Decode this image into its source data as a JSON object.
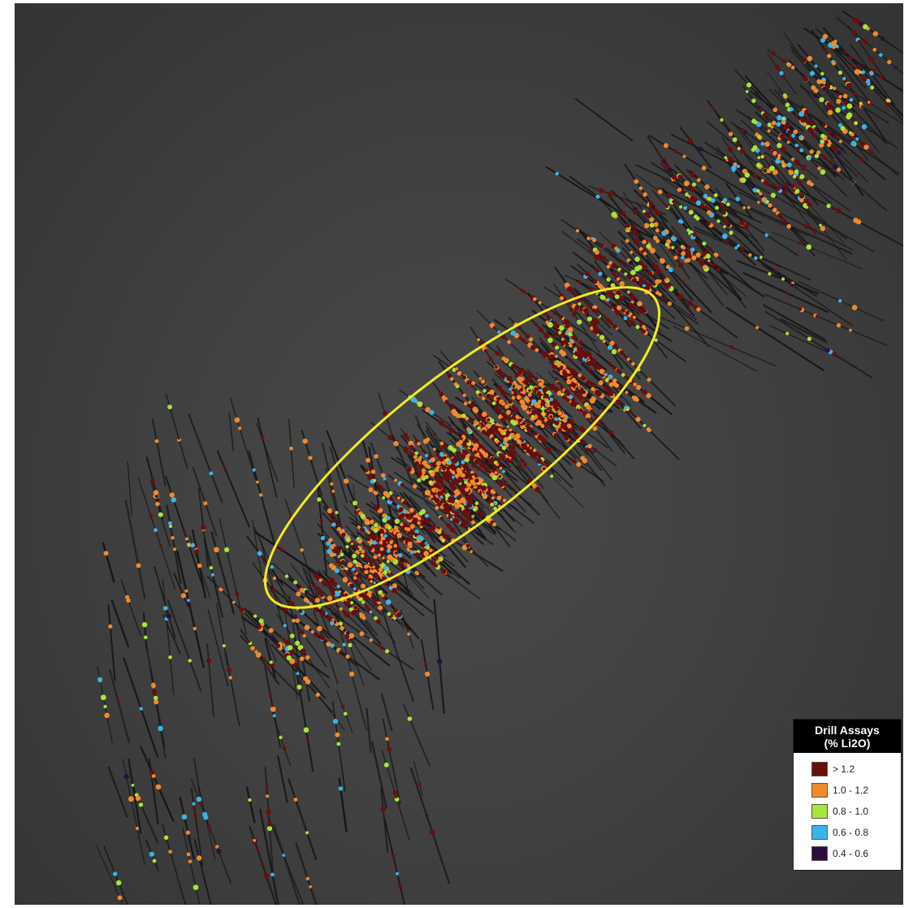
{
  "legend": {
    "title_line1": "Drill Assays",
    "title_line2": "(% Li2O)",
    "items": [
      {
        "label": "> 1.2",
        "color": "#6b0d0d"
      },
      {
        "label": "1.0 - 1.2",
        "color": "#f08a2c"
      },
      {
        "label": "0.8 - 1.0",
        "color": "#a6e635"
      },
      {
        "label": "0.6 - 0.8",
        "color": "#3ab4e8"
      },
      {
        "label": "0.4 - 0.6",
        "color": "#2a0f3a"
      }
    ]
  },
  "scene": {
    "background": "#414141",
    "drillhole_color": "#161616",
    "highlight_color": "#f2ec1e"
  }
}
